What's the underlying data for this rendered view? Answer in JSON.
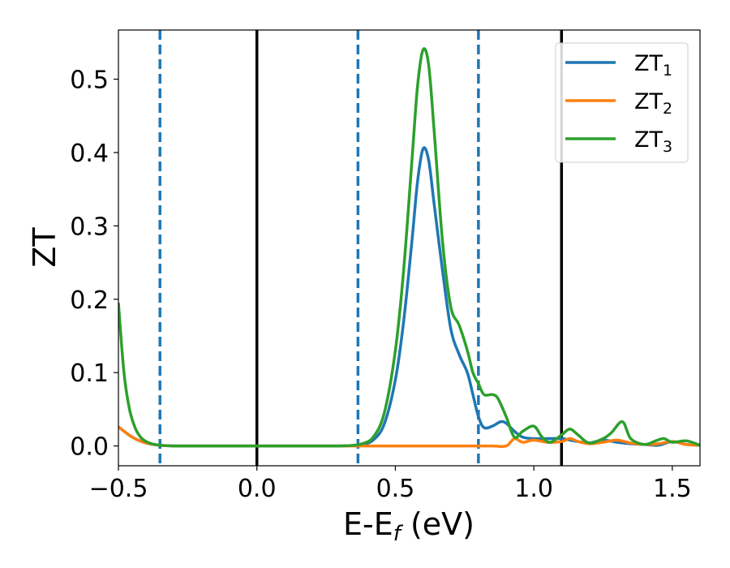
{
  "chart_data": {
    "type": "line",
    "xlabel": "E-E",
    "xlabel_sub": "f",
    "xlabel_unit": " (eV)",
    "ylabel": "ZT",
    "xlim": [
      -0.5,
      1.6
    ],
    "ylim": [
      -0.027,
      0.567
    ],
    "xticks": [
      -0.5,
      0.0,
      0.5,
      1.0,
      1.5
    ],
    "xtick_labels": [
      "−0.5",
      "0.0",
      "0.5",
      "1.0",
      "1.5"
    ],
    "yticks": [
      0.0,
      0.1,
      0.2,
      0.3,
      0.4,
      0.5
    ],
    "ytick_labels": [
      "0.0",
      "0.1",
      "0.2",
      "0.3",
      "0.4",
      "0.5"
    ],
    "grid": false,
    "legend_position": "top-right",
    "vertical_lines": [
      {
        "x": -0.35,
        "style": "dashed",
        "color": "#1f77b4"
      },
      {
        "x": 0.0,
        "style": "solid",
        "color": "#000000"
      },
      {
        "x": 0.365,
        "style": "dashed",
        "color": "#1f77b4"
      },
      {
        "x": 0.8,
        "style": "dashed",
        "color": "#1f77b4"
      },
      {
        "x": 1.1,
        "style": "solid",
        "color": "#000000"
      }
    ],
    "series": [
      {
        "name": "ZT",
        "name_sub": "1",
        "color": "#1f77b4",
        "x": [
          -0.5,
          -0.45,
          -0.4,
          -0.35,
          -0.3,
          -0.2,
          0.0,
          0.2,
          0.3,
          0.35,
          0.38,
          0.42,
          0.46,
          0.5,
          0.53,
          0.56,
          0.58,
          0.6,
          0.62,
          0.64,
          0.67,
          0.7,
          0.73,
          0.76,
          0.78,
          0.8,
          0.82,
          0.85,
          0.88,
          0.9,
          0.93,
          0.96,
          1.0,
          1.05,
          1.1,
          1.13,
          1.16,
          1.2,
          1.25,
          1.3,
          1.35,
          1.4,
          1.45,
          1.5,
          1.55,
          1.6
        ],
        "y": [
          0.026,
          0.012,
          0.004,
          0.001,
          0.0,
          0.0,
          0.0,
          0.0,
          0.0,
          0.0005,
          0.002,
          0.008,
          0.03,
          0.09,
          0.17,
          0.28,
          0.36,
          0.405,
          0.39,
          0.33,
          0.24,
          0.16,
          0.125,
          0.1,
          0.07,
          0.04,
          0.025,
          0.027,
          0.033,
          0.031,
          0.02,
          0.012,
          0.01,
          0.01,
          0.01,
          0.008,
          0.006,
          0.004,
          0.008,
          0.005,
          0.003,
          0.002,
          0.001,
          0.006,
          0.002,
          0.001
        ]
      },
      {
        "name": "ZT",
        "name_sub": "2",
        "color": "#ff7f0e",
        "x": [
          -0.5,
          -0.45,
          -0.4,
          -0.35,
          -0.3,
          -0.2,
          0.0,
          0.2,
          0.3,
          0.4,
          0.5,
          0.6,
          0.7,
          0.8,
          0.85,
          0.9,
          0.93,
          0.96,
          1.0,
          1.05,
          1.1,
          1.13,
          1.16,
          1.2,
          1.25,
          1.3,
          1.35,
          1.4,
          1.45,
          1.5,
          1.55,
          1.6
        ],
        "y": [
          0.026,
          0.012,
          0.004,
          0.001,
          0.0,
          0.0,
          0.0,
          0.0,
          0.0,
          0.0,
          0.0,
          0.0,
          0.0,
          0.0,
          0.0,
          0.0,
          0.01,
          0.005,
          0.008,
          0.005,
          0.006,
          0.01,
          0.006,
          0.003,
          0.005,
          0.008,
          0.004,
          0.002,
          0.003,
          0.006,
          0.002,
          0.001
        ]
      },
      {
        "name": "ZT",
        "name_sub": "3",
        "color": "#2ca02c",
        "x": [
          -0.5,
          -0.48,
          -0.46,
          -0.44,
          -0.42,
          -0.4,
          -0.38,
          -0.35,
          -0.3,
          -0.25,
          -0.2,
          0.0,
          0.2,
          0.3,
          0.35,
          0.38,
          0.42,
          0.46,
          0.5,
          0.53,
          0.56,
          0.58,
          0.6,
          0.62,
          0.64,
          0.67,
          0.7,
          0.73,
          0.76,
          0.78,
          0.8,
          0.82,
          0.85,
          0.87,
          0.9,
          0.93,
          0.96,
          1.0,
          1.03,
          1.06,
          1.1,
          1.13,
          1.16,
          1.2,
          1.25,
          1.28,
          1.32,
          1.35,
          1.4,
          1.44,
          1.47,
          1.5,
          1.55,
          1.6
        ],
        "y": [
          0.195,
          0.1,
          0.05,
          0.025,
          0.012,
          0.006,
          0.003,
          0.001,
          0.0,
          0.0,
          0.0,
          0.0,
          0.0,
          0.0,
          0.001,
          0.003,
          0.012,
          0.045,
          0.13,
          0.24,
          0.39,
          0.49,
          0.54,
          0.52,
          0.43,
          0.28,
          0.19,
          0.165,
          0.13,
          0.1,
          0.085,
          0.07,
          0.07,
          0.065,
          0.04,
          0.012,
          0.02,
          0.027,
          0.012,
          0.005,
          0.015,
          0.023,
          0.015,
          0.004,
          0.01,
          0.018,
          0.033,
          0.01,
          0.002,
          0.007,
          0.01,
          0.005,
          0.007,
          0.001
        ]
      }
    ]
  }
}
